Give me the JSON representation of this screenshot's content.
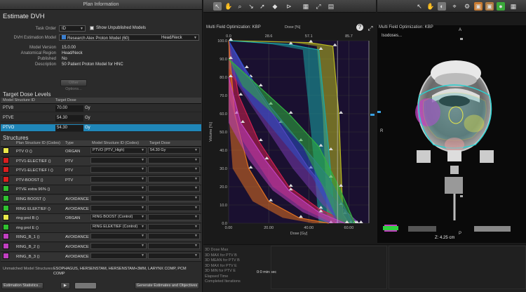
{
  "left_panel": {
    "title": "Plan Information",
    "heading": "Estimate DVH",
    "task_order_label": "Task Order",
    "task_order_value": "ID",
    "show_unpublished_label": "Show Unpublished Models",
    "dvh_model_label": "DVH Estimation Model",
    "dvh_model_value": "Research Alex Proton Model (60)",
    "dvh_model_site": "Head/Neck",
    "model_version_label": "Model Version",
    "model_version_value": "15.0.00",
    "anatomical_region_label": "Anatomical Region",
    "anatomical_region_value": "Head/Neck",
    "published_label": "Published",
    "published_value": "No",
    "description_label": "Description",
    "description_value": "50 Patient Proton Model for HNC",
    "other_options_button": "Other Options...",
    "target_dose_title": "Target Dose Levels",
    "target_cols": [
      "Model Structure ID",
      "Target Dose"
    ],
    "targets": [
      {
        "id": "PTV8",
        "dose": "70.00",
        "unit": "Gy"
      },
      {
        "id": "PTVE",
        "dose": "54.30",
        "unit": "Gy"
      },
      {
        "id": "PTVO",
        "dose": "54.30",
        "unit": "Gy"
      }
    ],
    "structures_title": "Structures",
    "struct_cols": [
      "Plan Structure ID (Codes)",
      "Type",
      "Model Structure ID (Codes)",
      "Target Dose"
    ],
    "structures": [
      {
        "name": "PTV O ()",
        "type": "ORGAN",
        "model": "PTVO (PTV_High)",
        "dose": "54.30 Gy",
        "color": "#e8e84a"
      },
      {
        "name": "PTV1-ELECTIEF ()",
        "type": "PTV",
        "model": "",
        "dose": "",
        "color": "#d82020"
      },
      {
        "name": "PTV1-ELECTIEF I ()",
        "type": "PTV",
        "model": "",
        "dose": "",
        "color": "#d82020"
      },
      {
        "name": "PTV-BOOST ()",
        "type": "PTV",
        "model": "",
        "dose": "",
        "color": "#d82020"
      },
      {
        "name": "PTVE extra 96% ()",
        "type": "",
        "model": "",
        "dose": "",
        "color": "#30c030"
      },
      {
        "name": "RING BOOST ()",
        "type": "AVOIDANCE",
        "model": "",
        "dose": "",
        "color": "#30c030"
      },
      {
        "name": "RING ELEKTIEF ()",
        "type": "AVOIDANCE",
        "model": "",
        "dose": "",
        "color": "#30c030"
      },
      {
        "name": "ring prol B ()",
        "type": "ORGAN",
        "model": "RING BOOST (Control)",
        "dose": "",
        "color": "#e8e84a"
      },
      {
        "name": "ring prol E ()",
        "type": "",
        "model": "RING ELEKTIEF (Control)",
        "dose": "",
        "color": "#30c030"
      },
      {
        "name": "RING_B_1 ()",
        "type": "AVOIDANCE",
        "model": "",
        "dose": "",
        "color": "#c040c0"
      },
      {
        "name": "RING_B_2 ()",
        "type": "AVOIDANCE",
        "model": "",
        "dose": "",
        "color": "#c040c0"
      },
      {
        "name": "RING_B_3 ()",
        "type": "AVOIDANCE",
        "model": "",
        "dose": "",
        "color": "#c040c0"
      }
    ],
    "unmatched_label": "Unmatched Model Structures",
    "unmatched_value": "ESOPHAGUS, HERSENSTAM, HERSENSTAM+3MM, LARYNX COMP, PCM COMP",
    "estimation_stats_button": "Estimation Statistics...",
    "generate_button": "Generate Estimates and Objectives"
  },
  "dvh_pane": {
    "title": "Multi Field Optimization: KBP",
    "dose_pct_label": "Dose [%]",
    "dose_pct_ticks": [
      "0.0",
      "28.6",
      "57.1",
      "85.7"
    ],
    "xlabel": "Dose [Gy]",
    "x_ticks": [
      "0.00",
      "20.00",
      "40.00",
      "60.00"
    ],
    "ylabel": "Volume [%]",
    "y_ticks": [
      "100.0",
      "90.0",
      "80.0",
      "70.0",
      "60.0",
      "50.0",
      "40.0",
      "30.0",
      "20.0",
      "10.0",
      "0.0"
    ]
  },
  "ct_pane": {
    "title": "Multi Field Optimization: KBP",
    "isodoses": "Isodoses...",
    "orient_a": "A",
    "orient_r": "R",
    "orient_p": "P",
    "z_label": "Z: 4.25 cm"
  },
  "status": {
    "rows": [
      "3D Dose Max",
      "3D MAX for PTV B",
      "3D MEAN for PTV B",
      "3D MAX for PTV E",
      "3D MIN for PTV E",
      "Elapsed Time",
      "Completed Iterations"
    ],
    "elapsed_value": "0:0 min:sec"
  },
  "chart_data": {
    "type": "area",
    "title": "Multi Field Optimization: KBP",
    "xlabel": "Dose [Gy]",
    "ylabel": "Volume [%]",
    "xlim": [
      0,
      70
    ],
    "ylim": [
      0,
      100
    ],
    "series": [
      {
        "values": [
          [
            0,
            100
          ],
          [
            40,
            99
          ],
          [
            52,
            97
          ],
          [
            55,
            60
          ],
          [
            57,
            5
          ],
          [
            60,
            0
          ]
        ],
        "color": "#b8b820"
      },
      {
        "values": [
          [
            0,
            100
          ],
          [
            30,
            98
          ],
          [
            45,
            95
          ],
          [
            50,
            40
          ],
          [
            53,
            0
          ]
        ],
        "color": "#1aa8a8"
      },
      {
        "values": [
          [
            0,
            100
          ],
          [
            10,
            80
          ],
          [
            25,
            55
          ],
          [
            40,
            30
          ],
          [
            55,
            10
          ],
          [
            65,
            0
          ]
        ],
        "color": "#7a3ab0"
      },
      {
        "values": [
          [
            0,
            100
          ],
          [
            5,
            70
          ],
          [
            15,
            45
          ],
          [
            30,
            20
          ],
          [
            45,
            8
          ],
          [
            60,
            0
          ]
        ],
        "color": "#d02050"
      },
      {
        "values": [
          [
            0,
            100
          ],
          [
            8,
            85
          ],
          [
            20,
            65
          ],
          [
            35,
            45
          ],
          [
            50,
            25
          ],
          [
            62,
            0
          ]
        ],
        "color": "#2b50c8"
      },
      {
        "values": [
          [
            0,
            100
          ],
          [
            3,
            60
          ],
          [
            10,
            30
          ],
          [
            20,
            12
          ],
          [
            35,
            3
          ],
          [
            50,
            0
          ]
        ],
        "color": "#e07020"
      },
      {
        "values": [
          [
            0,
            90
          ],
          [
            15,
            75
          ],
          [
            30,
            60
          ],
          [
            45,
            42
          ],
          [
            55,
            20
          ],
          [
            63,
            0
          ]
        ],
        "color": "#30b040"
      },
      {
        "values": [
          [
            0,
            80
          ],
          [
            6,
            55
          ],
          [
            18,
            35
          ],
          [
            30,
            18
          ],
          [
            45,
            6
          ],
          [
            58,
            0
          ]
        ],
        "color": "#c040c0"
      }
    ]
  }
}
